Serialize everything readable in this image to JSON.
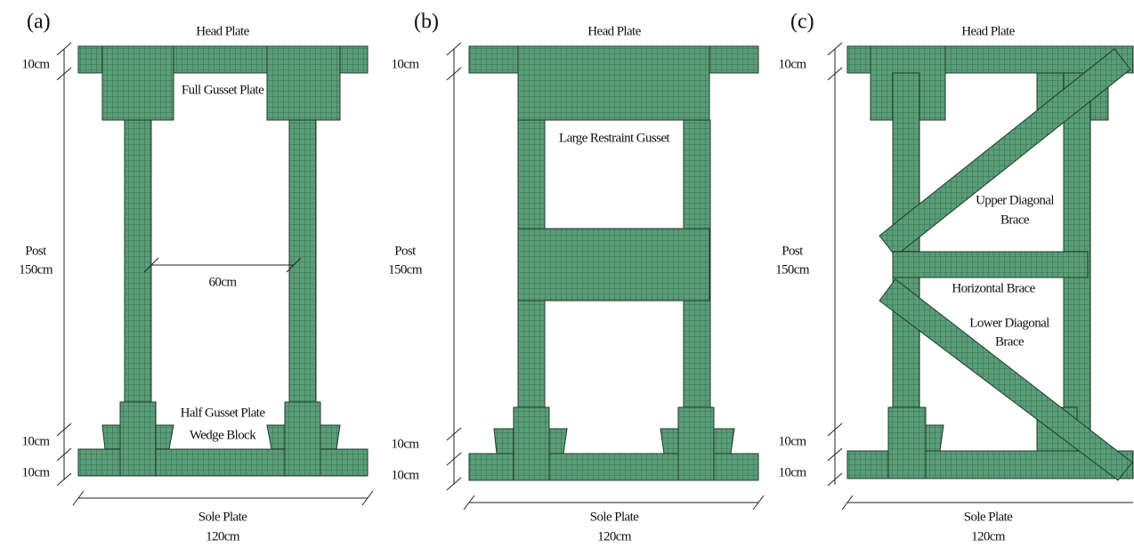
{
  "panels": [
    {
      "label": "(a)",
      "head_plate": "Head Plate",
      "head_height": "10cm",
      "gusset": "Full Gusset Plate",
      "post": "Post",
      "post_height": "150cm",
      "post_spacing": "60cm",
      "bottom_gusset": "Half Gusset Plate",
      "wedge": "Wedge Block",
      "wedge_height": "10cm",
      "sole_height": "10cm",
      "sole_plate": "Sole Plate",
      "sole_width": "120cm"
    },
    {
      "label": "(b)",
      "head_plate": "Head Plate",
      "head_height": "10cm",
      "gusset": "Large Restraint Gusset",
      "post": "Post",
      "post_height": "150cm",
      "wedge_height": "10cm",
      "sole_height": "10cm",
      "sole_plate": "Sole Plate",
      "sole_width": "120cm"
    },
    {
      "label": "(c)",
      "head_plate": "Head Plate",
      "head_height": "10cm",
      "post": "Post",
      "post_height": "150cm",
      "upper_brace": [
        "Upper Diagonal",
        "Brace"
      ],
      "horizontal_brace": "Horizontal Brace",
      "lower_brace": [
        "Lower Diagonal",
        "Brace"
      ],
      "wedge_height": "10cm",
      "sole_height": "10cm",
      "sole_plate": "Sole Plate",
      "sole_width": "120cm"
    }
  ]
}
